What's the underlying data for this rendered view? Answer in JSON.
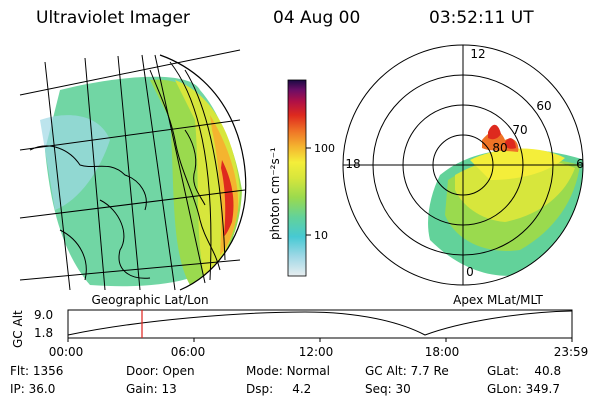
{
  "header": {
    "instrument": "Ultraviolet Imager",
    "date": "04 Aug 00",
    "time": "03:52:11  UT"
  },
  "geo_panel": {
    "label": "Geographic Lat/Lon"
  },
  "colorbar": {
    "unit_label": "photon cm⁻²s⁻¹",
    "scale": "log",
    "range": [
      3,
      500
    ],
    "ticks": [
      "100",
      "10"
    ],
    "colors": [
      "#e8eef0",
      "#9fd8e6",
      "#47c9d3",
      "#62d29a",
      "#9ada4e",
      "#d7e63c",
      "#f4ee3a",
      "#f4b42f",
      "#ef7326",
      "#de2a1e",
      "#b01046",
      "#6b0e66",
      "#1a0a44"
    ]
  },
  "polar_panel": {
    "label": "Apex MLat/MLT",
    "mlt_labels": {
      "top": "12",
      "left": "18",
      "right": "6",
      "bottom": "0"
    },
    "lat_labels": [
      "60",
      "70",
      "80"
    ]
  },
  "altitude_plot": {
    "ylabel": "GC Alt",
    "yticks": [
      "9.0",
      "1.8"
    ],
    "xticks": [
      "00:00",
      "06:00",
      "12:00",
      "18:00",
      "23:59"
    ],
    "current_time_marker": "03:52"
  },
  "status": {
    "flt": {
      "label": "Flt:",
      "value": "1356"
    },
    "ip": {
      "label": "IP:",
      "value": "36.0"
    },
    "door": {
      "label": "Door:",
      "value": "Open"
    },
    "gain": {
      "label": "Gain:",
      "value": "13"
    },
    "mode": {
      "label": "Mode:",
      "value": "Normal"
    },
    "dsp": {
      "label": "Dsp:",
      "value": "4.2"
    },
    "gcalt": {
      "label": "GC Alt:",
      "value": "7.7 Re"
    },
    "seq": {
      "label": "Seq:",
      "value": "30"
    },
    "glat": {
      "label": "GLat:",
      "value": "40.8"
    },
    "glon": {
      "label": "GLon:",
      "value": "349.7"
    }
  }
}
